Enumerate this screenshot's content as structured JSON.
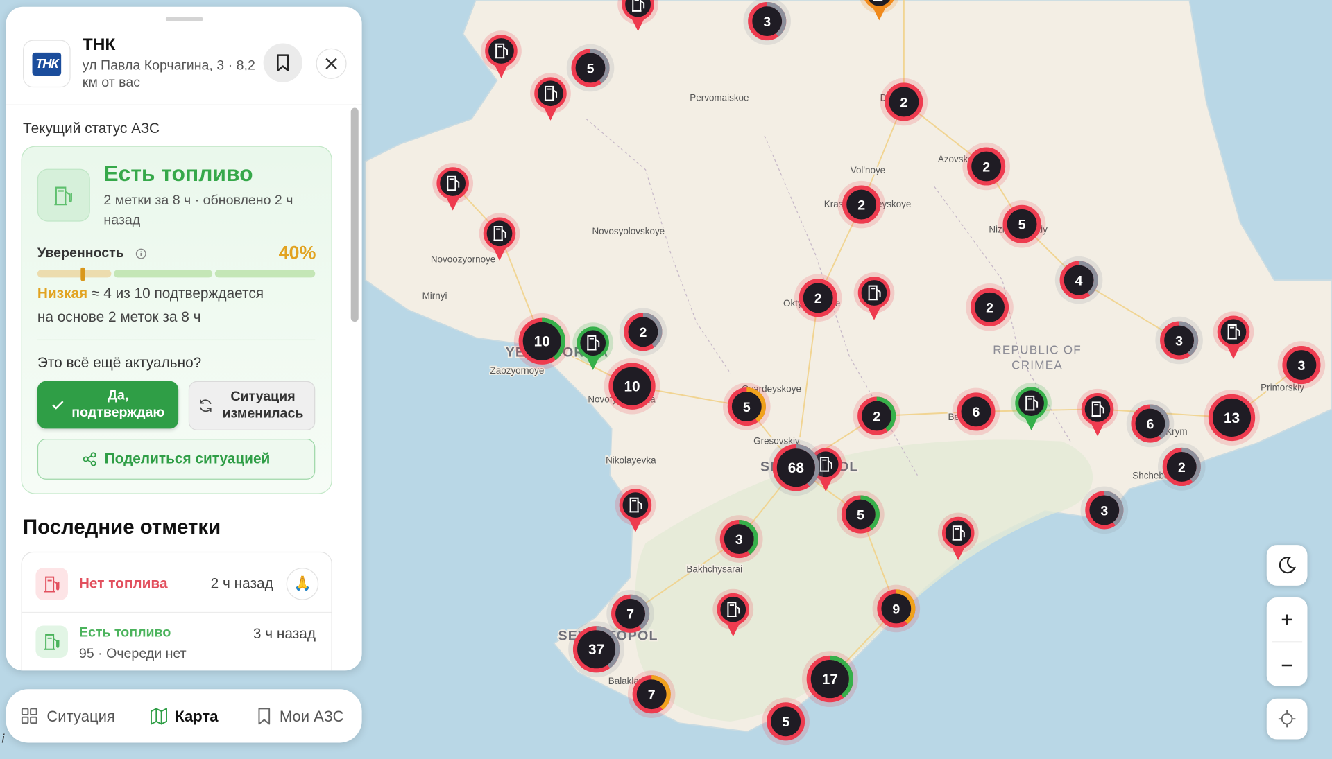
{
  "panel": {
    "logo": "ТНК",
    "station_name": "ТНК",
    "address": "ул Павла Корчагина, 3 · 8,2 км от вас",
    "status_heading": "Текущий статус АЗС",
    "status_title": "Есть топливо",
    "status_details": "2 метки за 8 ч · обновлено 2 ч назад",
    "confidence_label": "Уверенность",
    "confidence_value": "40%",
    "confidence_level": "Низкая",
    "confidence_note": "≈ 4 из 10 подтверждается",
    "confidence_basis": "на основе 2 меток за 8 ч",
    "question": "Это всё ещё актуально?",
    "confirm_button": "Да, подтверждаю",
    "changed_button": "Ситуация изменилась",
    "share_button": "Поделиться ситуацией",
    "recent_heading": "Последние отметки",
    "recent": [
      {
        "status": "Нет топлива",
        "time": "2 ч назад",
        "reaction": "🙏"
      },
      {
        "status": "Есть топливо",
        "time": "3 ч назад",
        "details": "95 · Очереди нет"
      }
    ]
  },
  "nav": [
    "Ситуация",
    "Карта",
    "Мои АЗС"
  ],
  "map": {
    "places": [
      "Pervomaiskoe",
      "Vol'noye",
      "Azovskoye",
      "Krasnogvardeyskoye",
      "Nizhnegorskiy",
      "Novosyolovskoye",
      "Novoozyornoye",
      "Mirnyi",
      "Oktyabrskoye",
      "YEVPATORIYA",
      "Zaozyornoye",
      "Novofyodorovka",
      "Gvardeyskoye",
      "Gresovskiy",
      "SIMFEROPOL",
      "Nikolayevka",
      "Bakhchysarai",
      "SEVASTOPOL",
      "Balaklava",
      "Belogorsk",
      "Staryi Krym",
      "Primorskiy",
      "Shchebetovka",
      "Dzhankoi"
    ],
    "region": [
      "REPUBLIC OF",
      "CRIMEA"
    ],
    "clusters": [
      "3",
      "2",
      "5",
      "2",
      "2",
      "5",
      "4",
      "2",
      "2",
      "3",
      "3",
      "10",
      "2",
      "10",
      "5",
      "2",
      "6",
      "6",
      "13",
      "2",
      "68",
      "5",
      "3",
      "3",
      "7",
      "9",
      "37",
      "17",
      "7",
      "5"
    ],
    "attribution": "i"
  }
}
